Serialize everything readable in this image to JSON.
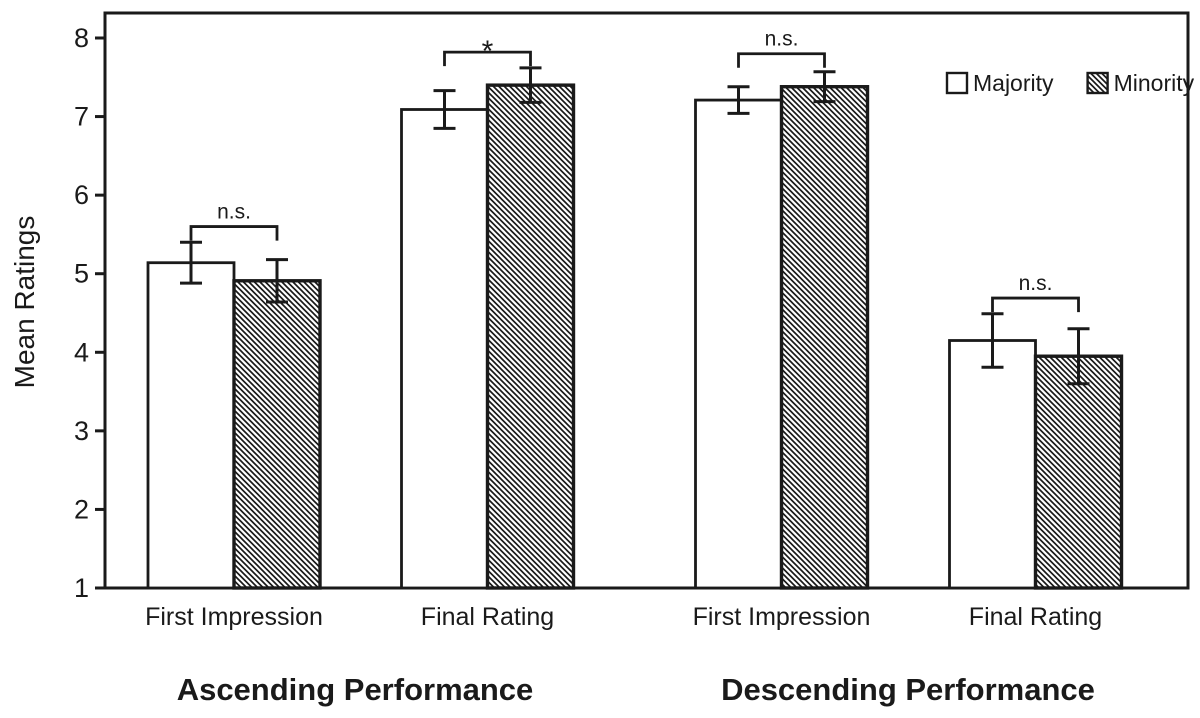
{
  "chart_data": {
    "type": "bar",
    "title": "",
    "ylabel": "Mean Ratings",
    "xlabel": "",
    "ylim": [
      1,
      8.3
    ],
    "yticks": [
      1,
      2,
      3,
      4,
      5,
      6,
      7,
      8
    ],
    "grid": false,
    "legend_position": "top-right-inside",
    "categories": [
      "First Impression",
      "Final Rating",
      "First Impression",
      "Final Rating"
    ],
    "group_labels": [
      "Ascending Performance",
      "Descending Performance"
    ],
    "legend": [
      {
        "name": "Majority",
        "fill": "white"
      },
      {
        "name": "Minority",
        "fill": "hatched"
      }
    ],
    "series": [
      {
        "name": "Majority",
        "values": [
          5.14,
          7.09,
          7.21,
          4.15
        ],
        "errors": [
          0.26,
          0.24,
          0.17,
          0.34
        ]
      },
      {
        "name": "Minority",
        "values": [
          4.91,
          7.4,
          7.38,
          3.95
        ],
        "errors": [
          0.27,
          0.22,
          0.19,
          0.35
        ]
      }
    ],
    "significance": [
      {
        "label": "n.s.",
        "group": 0,
        "bracket_value": 5.6
      },
      {
        "label": "*",
        "group": 1,
        "bracket_value": 7.82
      },
      {
        "label": "n.s.",
        "group": 2,
        "bracket_value": 7.8
      },
      {
        "label": "n.s.",
        "group": 3,
        "bracket_value": 4.69
      }
    ],
    "colors": {
      "stroke": "#1a1a1a",
      "bar_fill": "#ffffff",
      "background": "#ffffff",
      "hatch_style": "diagonal-lines-backslash"
    }
  }
}
